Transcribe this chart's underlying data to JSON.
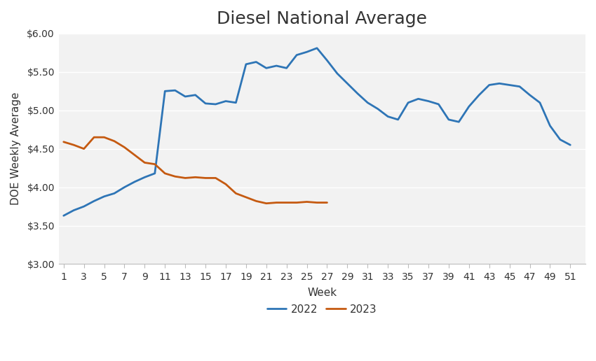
{
  "title": "Diesel National Average",
  "xlabel": "Week",
  "ylabel": "DOE Weekly Average",
  "weeks_2022": [
    1,
    2,
    3,
    4,
    5,
    6,
    7,
    8,
    9,
    10,
    11,
    12,
    13,
    14,
    15,
    16,
    17,
    18,
    19,
    20,
    21,
    22,
    23,
    24,
    25,
    26,
    27,
    28,
    29,
    30,
    31,
    32,
    33,
    34,
    35,
    36,
    37,
    38,
    39,
    40,
    41,
    42,
    43,
    44,
    45,
    46,
    47,
    48,
    49,
    50,
    51
  ],
  "values_2022": [
    3.63,
    3.7,
    3.75,
    3.82,
    3.88,
    3.92,
    4.0,
    4.07,
    4.13,
    4.18,
    5.25,
    5.26,
    5.18,
    5.2,
    5.09,
    5.08,
    5.12,
    5.1,
    5.6,
    5.63,
    5.55,
    5.58,
    5.55,
    5.72,
    5.76,
    5.81,
    5.65,
    5.48,
    5.35,
    5.22,
    5.1,
    5.02,
    4.92,
    4.88,
    5.1,
    5.15,
    5.12,
    5.08,
    4.88,
    4.85,
    5.05,
    5.2,
    5.33,
    5.35,
    5.33,
    5.31,
    5.2,
    5.1,
    4.8,
    4.62,
    4.55
  ],
  "weeks_2023": [
    1,
    2,
    3,
    4,
    5,
    6,
    7,
    8,
    9,
    10,
    11,
    12,
    13,
    14,
    15,
    16,
    17,
    18,
    19,
    20,
    21,
    22,
    23,
    24,
    25,
    26,
    27
  ],
  "values_2023": [
    4.59,
    4.55,
    4.5,
    4.65,
    4.65,
    4.6,
    4.52,
    4.42,
    4.32,
    4.3,
    4.18,
    4.14,
    4.12,
    4.13,
    4.12,
    4.12,
    4.04,
    3.92,
    3.87,
    3.82,
    3.79,
    3.8,
    3.8,
    3.8,
    3.81,
    3.8,
    3.8
  ],
  "color_2022": "#2E75B6",
  "color_2023": "#C55A11",
  "ylim": [
    3.0,
    6.0
  ],
  "yticks": [
    3.0,
    3.5,
    4.0,
    4.5,
    5.0,
    5.5,
    6.0
  ],
  "xticks": [
    1,
    3,
    5,
    7,
    9,
    11,
    13,
    15,
    17,
    19,
    21,
    23,
    25,
    27,
    29,
    31,
    33,
    35,
    37,
    39,
    41,
    43,
    45,
    47,
    49,
    51
  ],
  "xlim": [
    0.5,
    52.5
  ],
  "line_width": 2.0,
  "title_fontsize": 18,
  "label_fontsize": 11,
  "tick_fontsize": 10,
  "legend_fontsize": 11,
  "background_color": "#FFFFFF",
  "plot_bg_color": "#F2F2F2",
  "grid_color": "#FFFFFF",
  "legend_labels": [
    "2022",
    "2023"
  ]
}
